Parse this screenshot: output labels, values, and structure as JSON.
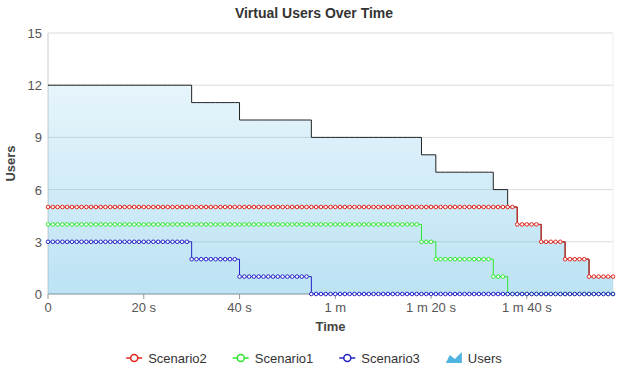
{
  "chart_data": {
    "type": "line",
    "title": "Virtual Users Over Time",
    "x_label": "Time",
    "y_label": "Users",
    "x": [
      0,
      1,
      2,
      3,
      4,
      5,
      6,
      7,
      8,
      9,
      10,
      11,
      12,
      13,
      14,
      15,
      16,
      17,
      18,
      19,
      20,
      21,
      22,
      23,
      24,
      25,
      26,
      27,
      28,
      29,
      30,
      31,
      32,
      33,
      34,
      35,
      36,
      37,
      38,
      39,
      40,
      41,
      42,
      43,
      44,
      45,
      46,
      47,
      48,
      49,
      50,
      51,
      52,
      53,
      54,
      55,
      56,
      57,
      58,
      59,
      60,
      61,
      62,
      63,
      64,
      65,
      66,
      67,
      68,
      69,
      70,
      71,
      72,
      73,
      74,
      75,
      76,
      77,
      78,
      79,
      80,
      81,
      82,
      83,
      84,
      85,
      86,
      87,
      88,
      89,
      90,
      91,
      92,
      93,
      94,
      95,
      96,
      97,
      98,
      99,
      100,
      101,
      102,
      103,
      104,
      105,
      106,
      107,
      108,
      109,
      110,
      111,
      112,
      113,
      114,
      115,
      116,
      117,
      118
    ],
    "xlim": [
      0,
      118
    ],
    "xticks": [
      0,
      {
        "value": 20,
        "label": "20 s"
      },
      {
        "value": 40,
        "label": "40 s"
      },
      {
        "value": 60,
        "label": "1 m"
      },
      {
        "value": 80,
        "label": "1 m 20 s"
      },
      {
        "value": 100,
        "label": "1 m 40 s"
      }
    ],
    "ylim": [
      0,
      15
    ],
    "yticks": [
      0,
      3,
      6,
      9,
      12,
      15
    ],
    "grid": true,
    "legend": "bottom",
    "line_style": "step",
    "series": [
      {
        "name": "Scenario2",
        "type": "line",
        "color": "#e3241b",
        "marker": "circle",
        "values": [
          5,
          5,
          5,
          5,
          5,
          5,
          5,
          5,
          5,
          5,
          5,
          5,
          5,
          5,
          5,
          5,
          5,
          5,
          5,
          5,
          5,
          5,
          5,
          5,
          5,
          5,
          5,
          5,
          5,
          5,
          5,
          5,
          5,
          5,
          5,
          5,
          5,
          5,
          5,
          5,
          5,
          5,
          5,
          5,
          5,
          5,
          5,
          5,
          5,
          5,
          5,
          5,
          5,
          5,
          5,
          5,
          5,
          5,
          5,
          5,
          5,
          5,
          5,
          5,
          5,
          5,
          5,
          5,
          5,
          5,
          5,
          5,
          5,
          5,
          5,
          5,
          5,
          5,
          5,
          5,
          5,
          5,
          5,
          5,
          5,
          5,
          5,
          5,
          5,
          5,
          5,
          5,
          5,
          5,
          5,
          5,
          5,
          5,
          4,
          4,
          4,
          4,
          4,
          3,
          3,
          3,
          3,
          3,
          2,
          2,
          2,
          2,
          2,
          1,
          1,
          1,
          1,
          1,
          1
        ]
      },
      {
        "name": "Scenario1",
        "type": "line",
        "color": "#2ee82e",
        "marker": "circle",
        "values": [
          4,
          4,
          4,
          4,
          4,
          4,
          4,
          4,
          4,
          4,
          4,
          4,
          4,
          4,
          4,
          4,
          4,
          4,
          4,
          4,
          4,
          4,
          4,
          4,
          4,
          4,
          4,
          4,
          4,
          4,
          4,
          4,
          4,
          4,
          4,
          4,
          4,
          4,
          4,
          4,
          4,
          4,
          4,
          4,
          4,
          4,
          4,
          4,
          4,
          4,
          4,
          4,
          4,
          4,
          4,
          4,
          4,
          4,
          4,
          4,
          4,
          4,
          4,
          4,
          4,
          4,
          4,
          4,
          4,
          4,
          4,
          4,
          4,
          4,
          4,
          4,
          4,
          4,
          3,
          3,
          3,
          2,
          2,
          2,
          2,
          2,
          2,
          2,
          2,
          2,
          2,
          2,
          2,
          1,
          1,
          1,
          0,
          0,
          0,
          0,
          0,
          0,
          0,
          0,
          0,
          0,
          0,
          0,
          0,
          0,
          0,
          0,
          0,
          0,
          0,
          0,
          0,
          0,
          0
        ]
      },
      {
        "name": "Scenario3",
        "type": "line",
        "color": "#2323c8",
        "marker": "circle",
        "values": [
          3,
          3,
          3,
          3,
          3,
          3,
          3,
          3,
          3,
          3,
          3,
          3,
          3,
          3,
          3,
          3,
          3,
          3,
          3,
          3,
          3,
          3,
          3,
          3,
          3,
          3,
          3,
          3,
          3,
          3,
          2,
          2,
          2,
          2,
          2,
          2,
          2,
          2,
          2,
          2,
          1,
          1,
          1,
          1,
          1,
          1,
          1,
          1,
          1,
          1,
          1,
          1,
          1,
          1,
          1,
          0,
          0,
          0,
          0,
          0,
          0,
          0,
          0,
          0,
          0,
          0,
          0,
          0,
          0,
          0,
          0,
          0,
          0,
          0,
          0,
          0,
          0,
          0,
          0,
          0,
          0,
          0,
          0,
          0,
          0,
          0,
          0,
          0,
          0,
          0,
          0,
          0,
          0,
          0,
          0,
          0,
          0,
          0,
          0,
          0,
          0,
          0,
          0,
          0,
          0,
          0,
          0,
          0,
          0,
          0,
          0,
          0,
          0,
          0,
          0,
          0,
          0,
          0,
          0
        ]
      },
      {
        "name": "Users",
        "type": "area",
        "color": "#4fb4e2",
        "marker": "none",
        "values": [
          12,
          12,
          12,
          12,
          12,
          12,
          12,
          12,
          12,
          12,
          12,
          12,
          12,
          12,
          12,
          12,
          12,
          12,
          12,
          12,
          12,
          12,
          12,
          12,
          12,
          12,
          12,
          12,
          12,
          12,
          11,
          11,
          11,
          11,
          11,
          11,
          11,
          11,
          11,
          11,
          10,
          10,
          10,
          10,
          10,
          10,
          10,
          10,
          10,
          10,
          10,
          10,
          10,
          10,
          10,
          9,
          9,
          9,
          9,
          9,
          9,
          9,
          9,
          9,
          9,
          9,
          9,
          9,
          9,
          9,
          9,
          9,
          9,
          9,
          9,
          9,
          9,
          9,
          8,
          8,
          8,
          7,
          7,
          7,
          7,
          7,
          7,
          7,
          7,
          7,
          7,
          7,
          7,
          6,
          6,
          6,
          5,
          5,
          4,
          4,
          4,
          4,
          4,
          3,
          3,
          3,
          3,
          3,
          2,
          2,
          2,
          2,
          2,
          1,
          1,
          1,
          1,
          1,
          1
        ]
      }
    ]
  }
}
